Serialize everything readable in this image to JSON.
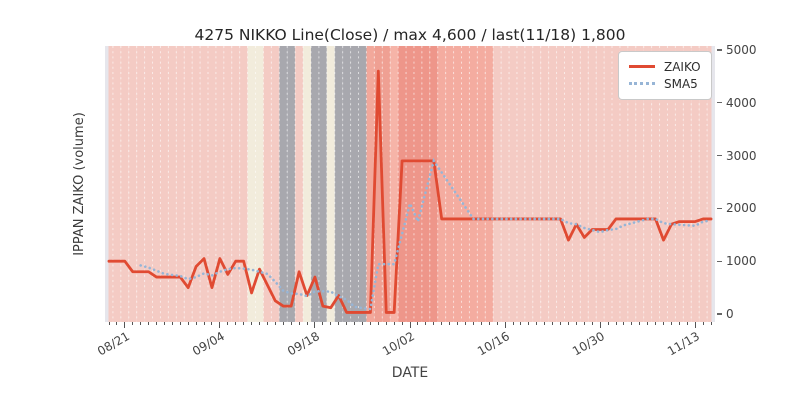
{
  "chart_data": {
    "type": "line",
    "title": "4275 NIKKO Line(Close) / max 4,600 / last(11/18) 1,800",
    "xlabel": "DATE",
    "ylabel": "IPPAN ZAIKO (volume)",
    "summary": {
      "max_value": 4600,
      "last_date": "11/18",
      "last_value": 1800
    },
    "x_axis": {
      "n_days": 77,
      "tick_labels": [
        "08/21",
        "09/04",
        "09/18",
        "10/02",
        "10/16",
        "10/30",
        "11/13"
      ],
      "tick_day_indices": [
        2,
        14,
        26,
        38,
        50,
        62,
        74
      ],
      "minor_ticks": "one per day column"
    },
    "y_axis": {
      "side": "right",
      "ticks": [
        0,
        1000,
        2000,
        3000,
        4000,
        5000
      ],
      "range": [
        -151,
        5075
      ]
    },
    "series": [
      {
        "name": "ZAIKO",
        "color": "#e04a32",
        "line_style": "solid",
        "values": [
          1000,
          1000,
          1000,
          800,
          800,
          800,
          700,
          700,
          700,
          700,
          500,
          900,
          1050,
          500,
          1050,
          750,
          1000,
          1000,
          400,
          850,
          550,
          250,
          150,
          150,
          800,
          350,
          700,
          150,
          120,
          350,
          30,
          30,
          30,
          30,
          4600,
          30,
          30,
          2900,
          2900,
          2900,
          2900,
          2900,
          1800,
          1800,
          1800,
          1800,
          1800,
          1800,
          1800,
          1800,
          1800,
          1800,
          1800,
          1800,
          1800,
          1800,
          1800,
          1800,
          1400,
          1700,
          1450,
          1600,
          1600,
          1600,
          1800,
          1800,
          1800,
          1800,
          1800,
          1800,
          1400,
          1700,
          1750,
          1750,
          1750,
          1800,
          1800
        ]
      },
      {
        "name": "SMA5",
        "color": "#97b5d6",
        "line_style": "dotted",
        "derived_from": "ZAIKO",
        "window": 5
      }
    ],
    "legend": {
      "position": "upper-right",
      "entries": [
        "ZAIKO",
        "SMA5"
      ]
    },
    "background": {
      "default_band_color": "#f4cbc4",
      "gridline_color": "rgba(255,255,255,0.6)",
      "edge_strip_color": "#e6e6ec",
      "band_overrides": [
        {
          "from": 18,
          "to": 19,
          "color": "#f2ecdc"
        },
        {
          "from": 22,
          "to": 23,
          "color": "#a8a8ae"
        },
        {
          "from": 25,
          "to": 25,
          "color": "#f2ecdc"
        },
        {
          "from": 26,
          "to": 27,
          "color": "#a8a8ae"
        },
        {
          "from": 28,
          "to": 28,
          "color": "#f2ecdc"
        },
        {
          "from": 29,
          "to": 32,
          "color": "#a8a8ae"
        },
        {
          "from": 33,
          "to": 33,
          "color": "#f2a89b"
        },
        {
          "from": 34,
          "to": 35,
          "color": "#efa093"
        },
        {
          "from": 36,
          "to": 36,
          "color": "#f6b4a8"
        },
        {
          "from": 37,
          "to": 41,
          "color": "#ee968a"
        },
        {
          "from": 42,
          "to": 48,
          "color": "#f4aca0"
        }
      ]
    }
  }
}
